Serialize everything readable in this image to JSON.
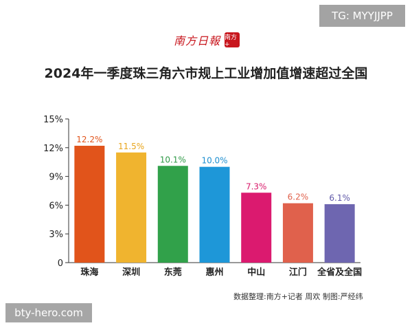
{
  "overlay_tag": "TG: MYYJJPP",
  "watermark": "bty-hero.com",
  "logo": {
    "text": "南方日報",
    "seal": "南方+"
  },
  "chart_data": {
    "type": "bar",
    "title": "2024年一季度珠三角六市规上工业增加值增速超过全国",
    "categories": [
      "珠海",
      "深圳",
      "东莞",
      "惠州",
      "中山",
      "江门",
      "全省及全国"
    ],
    "values": [
      12.2,
      11.5,
      10.1,
      10.0,
      7.3,
      6.2,
      6.1
    ],
    "value_labels": [
      "12.2%",
      "11.5%",
      "10.1%",
      "10.0%",
      "7.3%",
      "6.2%",
      "6.1%"
    ],
    "colors": [
      "#e1541b",
      "#f0b42f",
      "#31a14a",
      "#1e97d8",
      "#db1a6f",
      "#e0614c",
      "#6e66b0"
    ],
    "label_colors": [
      "#e1541b",
      "#e8a51c",
      "#2f9a47",
      "#1e8fd0",
      "#d81b6b",
      "#e0614c",
      "#5f58a8"
    ],
    "ylim": [
      0,
      15
    ],
    "yticks": [
      0,
      3,
      6,
      9,
      12,
      15
    ],
    "ytick_labels": [
      "0",
      "3%",
      "6%",
      "9%",
      "12%",
      "15%"
    ],
    "grid": false,
    "legend": "none"
  },
  "source": "数据整理:南方+记者 周欢  制图:严经纬"
}
